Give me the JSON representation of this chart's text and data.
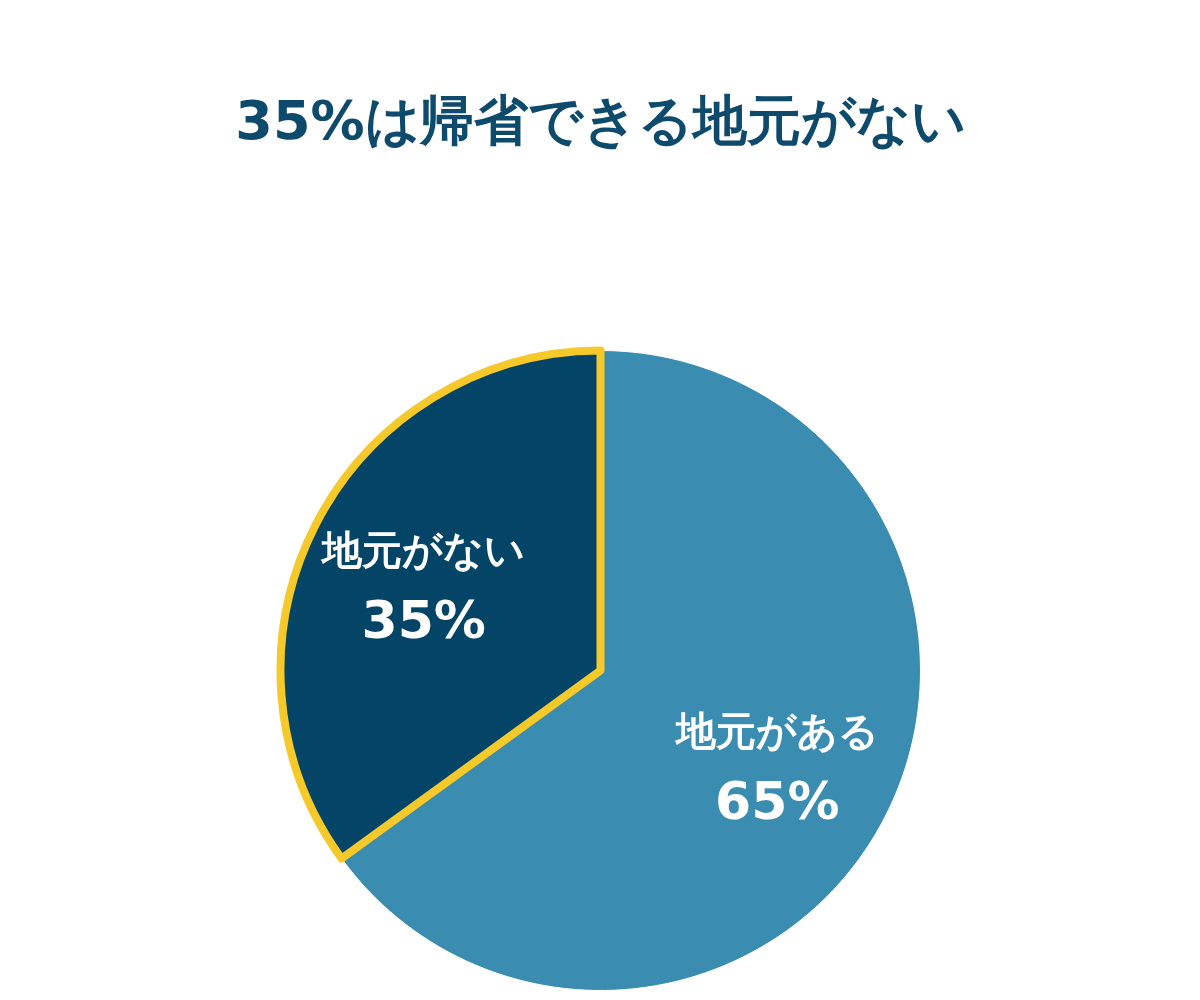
{
  "chart_data": {
    "type": "pie",
    "title": "35%は帰省できる地元がない",
    "categories": [
      "地元がある",
      "地元がない"
    ],
    "values": [
      65,
      35
    ],
    "colors": [
      "#3a8db0",
      "#044466"
    ],
    "value_labels": [
      "65%",
      "35%"
    ]
  }
}
